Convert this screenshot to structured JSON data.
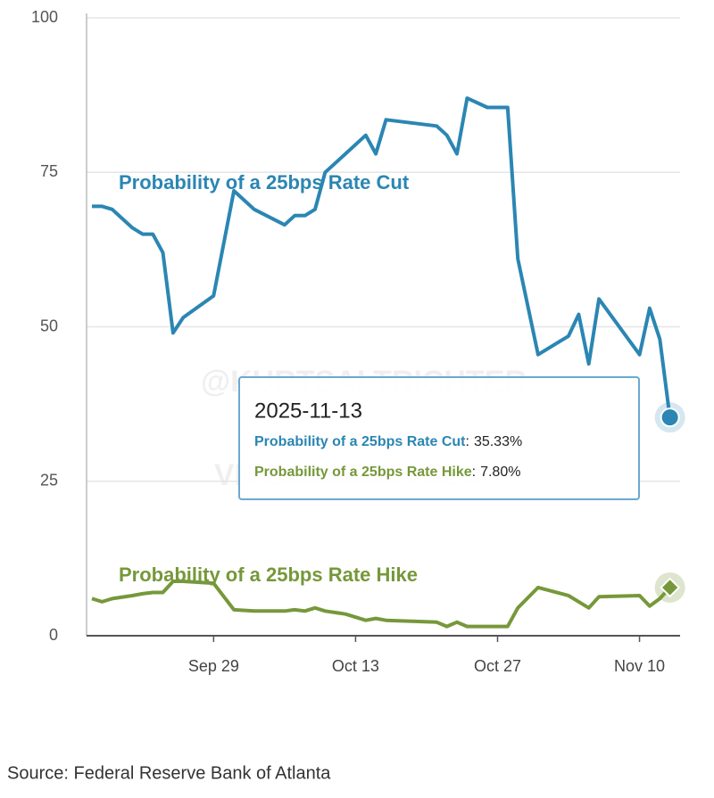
{
  "chart_data": {
    "type": "line",
    "x": [
      "2025-09-17",
      "2025-09-18",
      "2025-09-19",
      "2025-09-21",
      "2025-09-22",
      "2025-09-23",
      "2025-09-24",
      "2025-09-25",
      "2025-09-26",
      "2025-09-29",
      "2025-10-01",
      "2025-10-03",
      "2025-10-06",
      "2025-10-07",
      "2025-10-08",
      "2025-10-09",
      "2025-10-10",
      "2025-10-12",
      "2025-10-14",
      "2025-10-15",
      "2025-10-16",
      "2025-10-21",
      "2025-10-22",
      "2025-10-23",
      "2025-10-24",
      "2025-10-26",
      "2025-10-28",
      "2025-10-29",
      "2025-10-31",
      "2025-11-03",
      "2025-11-04",
      "2025-11-05",
      "2025-11-06",
      "2025-11-10",
      "2025-11-11",
      "2025-11-12",
      "2025-11-13"
    ],
    "series": [
      {
        "name": "Probability of a 25bps Rate Cut",
        "color": "#2b86b3",
        "values": [
          69.5,
          69.5,
          69,
          66,
          65,
          65,
          62,
          49,
          51.5,
          55,
          72,
          69,
          66.5,
          68,
          68,
          69,
          75,
          78,
          81,
          78,
          83.5,
          82.5,
          81,
          78,
          87,
          85.5,
          85.5,
          61,
          45.5,
          48.5,
          52,
          44,
          54.5,
          45.5,
          53,
          48,
          35.33
        ]
      },
      {
        "name": "Probability of a 25bps Rate Hike",
        "color": "#76983a",
        "values": [
          6,
          5.5,
          6,
          6.5,
          6.8,
          7,
          7,
          8.8,
          8.8,
          8.5,
          4.2,
          4,
          4,
          4.2,
          4,
          4.5,
          4,
          3.5,
          2.5,
          2.8,
          2.5,
          2.2,
          1.5,
          2.2,
          1.5,
          1.5,
          1.5,
          4.5,
          7.8,
          6.5,
          5.5,
          4.5,
          6.3,
          6.5,
          4.8,
          6,
          7.8
        ]
      }
    ],
    "xlim": [
      "2025-09-17",
      "2025-11-14"
    ],
    "xticks": [
      {
        "value": "2025-09-29",
        "label": "Sep 29"
      },
      {
        "value": "2025-10-13",
        "label": "Oct 13"
      },
      {
        "value": "2025-10-27",
        "label": "Oct 27"
      },
      {
        "value": "2025-11-10",
        "label": "Nov 10"
      }
    ],
    "ylim": [
      0,
      100
    ],
    "yticks": [
      0,
      25,
      50,
      75,
      100
    ],
    "grid": true,
    "tooltip": {
      "date": "2025-11-13",
      "separator": ":",
      "value_labels": [
        "35.33%",
        "7.80%"
      ]
    },
    "watermarks": [
      "@KURTSALTRICHTER",
      "VN COMMODITIES"
    ],
    "source": "Source: Federal Reserve Bank of Atlanta"
  }
}
